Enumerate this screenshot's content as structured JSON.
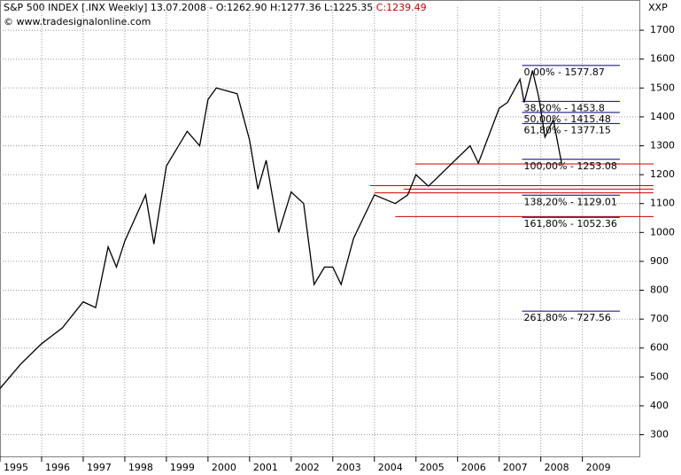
{
  "chart_data": {
    "type": "line",
    "title": "S&P 500 INDEX [.INX  Weekly] 13.07.2008 - O:1262.90 H:1277.36 L:1225.35",
    "close_label": "C:1239.49",
    "source": "© www.tradesignalonline.com",
    "axis_label": "XXP",
    "x": [
      1995.0,
      1995.5,
      1996.0,
      1996.5,
      1997.0,
      1997.3,
      1997.6,
      1997.8,
      1998.0,
      1998.5,
      1998.7,
      1999.0,
      1999.5,
      1999.8,
      2000.0,
      2000.2,
      2000.7,
      2001.0,
      2001.2,
      2001.4,
      2001.7,
      2002.0,
      2002.3,
      2002.55,
      2002.8,
      2003.0,
      2003.2,
      2003.5,
      2004.0,
      2004.5,
      2004.8,
      2005.0,
      2005.3,
      2005.8,
      2006.3,
      2006.5,
      2007.0,
      2007.2,
      2007.5,
      2007.6,
      2007.8,
      2007.95,
      2008.1,
      2008.3,
      2008.5
    ],
    "values": [
      460,
      545,
      615,
      670,
      760,
      740,
      950,
      880,
      970,
      1130,
      960,
      1230,
      1350,
      1300,
      1460,
      1500,
      1480,
      1320,
      1150,
      1250,
      1000,
      1140,
      1100,
      820,
      880,
      880,
      820,
      980,
      1130,
      1100,
      1130,
      1200,
      1160,
      1230,
      1300,
      1240,
      1430,
      1450,
      1530,
      1450,
      1560,
      1470,
      1330,
      1390,
      1239.49
    ],
    "color": "#000000",
    "xlim": [
      1995.0,
      2010.37
    ],
    "xticks": [
      1995,
      1996,
      1997,
      1998,
      1999,
      2000,
      2001,
      2002,
      2003,
      2004,
      2005,
      2006,
      2007,
      2008,
      2009
    ],
    "ylim": [
      225,
      1780
    ],
    "yticks": [
      300,
      400,
      500,
      600,
      700,
      800,
      900,
      1000,
      1100,
      1200,
      1300,
      1400,
      1500,
      1600,
      1700
    ],
    "grid": true,
    "fib_color": "#000080",
    "fibonacci": {
      "from": 2007.55,
      "to": 2009.9,
      "levels": [
        {
          "value": 1577.87,
          "label": "0,00% - 1577.87"
        },
        {
          "value": 1453.8,
          "label": "38,20% - 1453.8"
        },
        {
          "value": 1415.48,
          "label": "50,00% - 1415.48"
        },
        {
          "value": 1377.15,
          "label": "61,80% - 1377.15"
        },
        {
          "value": 1253.08,
          "label": "100,00% - 1253.08"
        },
        {
          "value": 1129.01,
          "label": "138,20% - 1129.01"
        },
        {
          "value": 1052.36,
          "label": "161,80% - 1052.36"
        },
        {
          "value": 727.56,
          "label": "261,80% - 727.56"
        }
      ]
    },
    "support_color": "#cc0000",
    "support_lines": [
      {
        "value": 1237,
        "from": 2004.98
      },
      {
        "value": 1162,
        "from": 2003.9
      },
      {
        "value": 1150,
        "from": 2004.7
      },
      {
        "value": 1137,
        "from": 2004.0
      },
      {
        "value": 1055,
        "from": 2004.5
      }
    ]
  }
}
